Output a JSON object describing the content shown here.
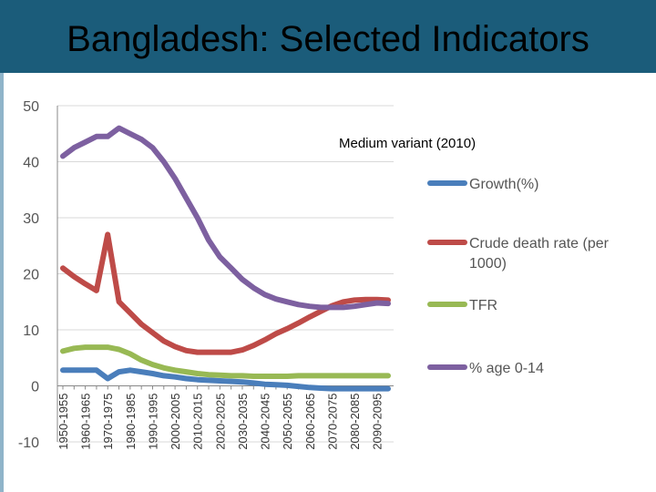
{
  "slide": {
    "title": "Bangladesh: Selected Indicators"
  },
  "colors": {
    "growth": "#4a7ebb",
    "death": "#be4b48",
    "tfr": "#98b954",
    "age": "#7d60a0",
    "grid": "#d9d9d9",
    "axis": "#888888"
  },
  "chart_data": {
    "type": "line",
    "title": "",
    "annotation": "Medium variant (2010)",
    "xlabel": "",
    "ylabel": "",
    "ylim": [
      -10,
      50
    ],
    "yticks": [
      -10,
      0,
      10,
      20,
      30,
      40,
      50
    ],
    "grid": true,
    "legend_placement": "right",
    "x": [
      "1950-1955",
      "1955-1960",
      "1960-1965",
      "1965-1970",
      "1970-1975",
      "1975-1980",
      "1980-1985",
      "1985-1990",
      "1990-1995",
      "1995-2000",
      "2000-2005",
      "2005-2010",
      "2010-2015",
      "2015-2020",
      "2020-2025",
      "2025-2030",
      "2030-2035",
      "2035-2040",
      "2040-2045",
      "2045-2050",
      "2050-2055",
      "2055-2060",
      "2060-2065",
      "2065-2070",
      "2070-2075",
      "2075-2080",
      "2080-2085",
      "2085-2090",
      "2090-2095",
      "2095-2100"
    ],
    "xtick_labels": [
      "1950-1955",
      "1960-1965",
      "1970-1975",
      "1980-1985",
      "1990-1995",
      "2000-2005",
      "2010-2015",
      "2020-2025",
      "2030-2035",
      "2040-2045",
      "2050-2055",
      "2060-2065",
      "2070-2075",
      "2080-2085",
      "2090-2095"
    ],
    "series": [
      {
        "key": "growth",
        "name": "Growth(%)",
        "values": [
          2.8,
          2.8,
          2.8,
          2.8,
          1.3,
          2.5,
          2.8,
          2.5,
          2.2,
          1.8,
          1.6,
          1.3,
          1.1,
          1.0,
          0.9,
          0.8,
          0.7,
          0.5,
          0.3,
          0.2,
          0.1,
          -0.1,
          -0.3,
          -0.4,
          -0.5,
          -0.5,
          -0.5,
          -0.5,
          -0.5,
          -0.5
        ]
      },
      {
        "key": "death",
        "name": "Crude death rate (per 1000)",
        "values": [
          21,
          19.5,
          18.2,
          17,
          27,
          15,
          13,
          11,
          9.5,
          8,
          7,
          6.3,
          6,
          6,
          6,
          6,
          6.4,
          7.2,
          8.2,
          9.3,
          10.2,
          11.2,
          12.3,
          13.3,
          14.3,
          15,
          15.3,
          15.4,
          15.4,
          15.3
        ]
      },
      {
        "key": "tfr",
        "name": "TFR",
        "values": [
          6.2,
          6.7,
          6.9,
          6.9,
          6.9,
          6.5,
          5.7,
          4.6,
          3.8,
          3.2,
          2.8,
          2.5,
          2.2,
          2.0,
          1.9,
          1.8,
          1.8,
          1.7,
          1.7,
          1.7,
          1.7,
          1.8,
          1.8,
          1.8,
          1.8,
          1.8,
          1.8,
          1.8,
          1.8,
          1.8
        ]
      },
      {
        "key": "age",
        "name": "% age 0-14",
        "values": [
          41,
          42.5,
          43.5,
          44.5,
          44.5,
          46,
          45,
          44,
          42.5,
          40,
          37,
          33.5,
          30,
          26,
          23,
          21,
          19,
          17.5,
          16.3,
          15.5,
          15,
          14.5,
          14.2,
          14,
          14,
          14,
          14.2,
          14.5,
          14.8,
          14.7
        ]
      }
    ]
  }
}
